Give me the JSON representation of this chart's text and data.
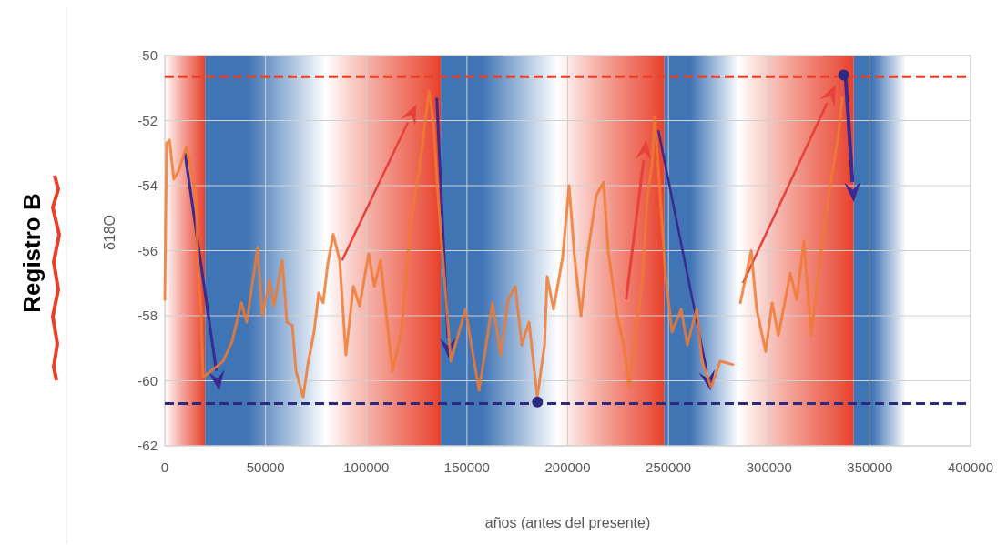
{
  "chart_data": {
    "type": "line",
    "title": "Registro B",
    "xlabel": "años (antes del presente)",
    "ylabel": "δ18O",
    "xlim": [
      0,
      400000
    ],
    "xticks": [
      0,
      50000,
      100000,
      150000,
      200000,
      250000,
      300000,
      350000,
      400000
    ],
    "ylim": [
      -62,
      -50
    ],
    "yticks": [
      -62,
      -60,
      -58,
      -56,
      -54,
      -52,
      -50
    ],
    "grid": true,
    "series": [
      {
        "color": "#ef7a32",
        "x": [
          0,
          900,
          2300,
          4500,
          6800,
          10800,
          15400,
          16700,
          18100,
          19000,
          28900,
          33400,
          38000,
          40700,
          46100,
          48400,
          52000,
          54200,
          58300,
          60600,
          63300,
          65100,
          68700,
          71000,
          74100,
          76400,
          78600,
          80900,
          83600,
          86800,
          89900,
          93600,
          96700,
          101200,
          104000,
          107100,
          113000,
          117500,
          122000,
          126600,
          131100,
          133300,
          135600,
          142000,
          149200,
          156000,
          162700,
          166800,
          170400,
          174000,
          177200,
          180800,
          184900,
          188500,
          189800,
          193000,
          197500,
          200700,
          203400,
          206600,
          209700,
          214200,
          217800,
          220100,
          224600,
          227800,
          230500,
          233700,
          236800,
          239600,
          241800,
          243200,
          245900,
          248600,
          251800,
          256300,
          259400,
          264000,
          266700,
          271200,
          275700,
          282000,
          283500,
          285700,
          291100,
          293800,
          298300,
          301500,
          304600,
          310500,
          313700,
          317300,
          320900,
          325400,
          330000,
          334500,
          336300
        ],
        "values": [
          -57.5,
          -52.7,
          -52.6,
          -53.8,
          -53.55,
          -52.8,
          -54.3,
          -56.7,
          -58.0,
          -59.9,
          -59.4,
          -58.8,
          -57.6,
          -58.2,
          -55.9,
          -58.0,
          -56.9,
          -57.7,
          -56.3,
          -58.2,
          -58.3,
          -59.7,
          -60.5,
          -59.5,
          -58.5,
          -57.3,
          -57.6,
          -56.4,
          -55.5,
          -56.3,
          -59.2,
          -57.1,
          -57.7,
          -56.1,
          -57.1,
          -56.3,
          -59.7,
          -58.5,
          -55.2,
          -53.4,
          -51.1,
          -52.0,
          -54.3,
          -59.4,
          -57.8,
          -60.3,
          -57.6,
          -59.2,
          -57.5,
          -57.1,
          -58.9,
          -58.2,
          -60.5,
          -58.9,
          -56.8,
          -57.8,
          -56.2,
          -54.0,
          -56.2,
          -58.0,
          -56.2,
          -54.3,
          -53.9,
          -56.0,
          -58.0,
          -58.9,
          -60.2,
          -58.5,
          -57.1,
          -54.3,
          -53.4,
          -51.9,
          -54.3,
          -56.8,
          -58.5,
          -57.8,
          -58.9,
          -57.8,
          -59.4,
          -60.2,
          -59.4,
          -59.5,
          null,
          -57.6,
          -56.0,
          -57.8,
          -59.1,
          -57.6,
          -58.6,
          -56.7,
          -57.5,
          -55.7,
          -58.6,
          -56.2,
          -54.1,
          -52.4,
          -51.3
        ]
      },
      {
        "type": "scatter",
        "color": "#2b2a80",
        "x": [
          185000,
          337000
        ],
        "values": [
          -60.65,
          -50.6
        ]
      }
    ],
    "ref_lines": [
      {
        "axis": "y",
        "value": -50.65,
        "color": "#e8402a",
        "line_style": "dashed"
      },
      {
        "axis": "y",
        "value": -60.7,
        "color": "#2b2a80",
        "line_style": "dashed"
      }
    ],
    "bands": [
      {
        "axis": "x",
        "from": 0,
        "to": 20000,
        "color": "#e8402a"
      },
      {
        "axis": "x",
        "from": 20000,
        "to": 80000,
        "color": "#3f74b5"
      },
      {
        "axis": "x",
        "from": 80000,
        "to": 137000,
        "color": "#e8402a"
      },
      {
        "axis": "x",
        "from": 137000,
        "to": 195000,
        "color": "#3f74b5"
      },
      {
        "axis": "x",
        "from": 195000,
        "to": 248000,
        "color": "#e8402a"
      },
      {
        "axis": "x",
        "from": 248000,
        "to": 285000,
        "color": "#3f74b5"
      },
      {
        "axis": "x",
        "from": 285000,
        "to": 342000,
        "color": "#e8402a"
      },
      {
        "axis": "x",
        "from": 342000,
        "to": 368000,
        "color": "#3f74b5"
      }
    ]
  }
}
